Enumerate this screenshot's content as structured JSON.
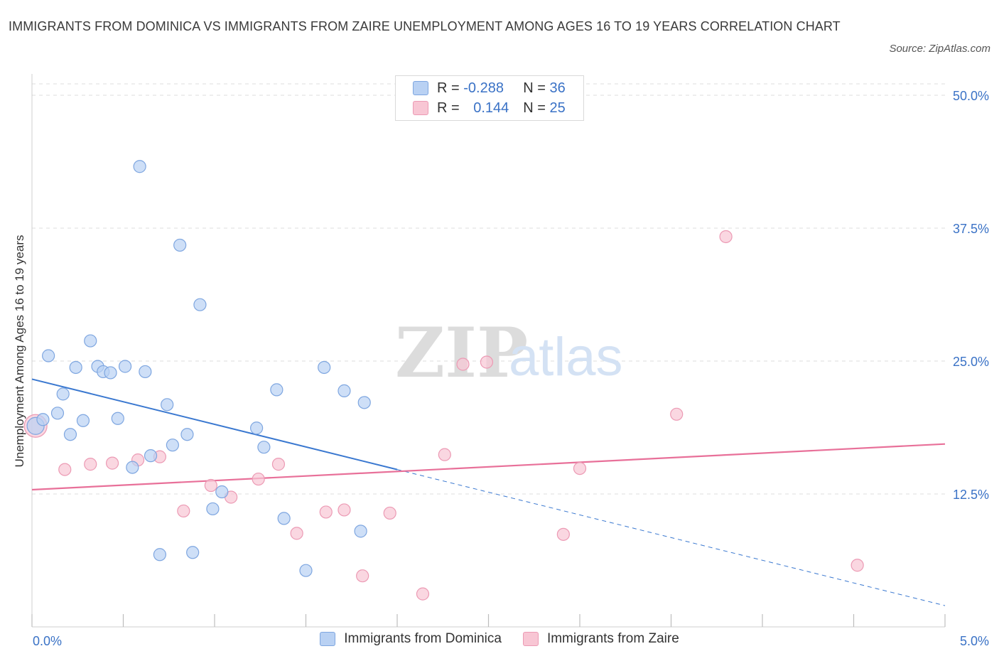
{
  "header": {
    "title": "IMMIGRANTS FROM DOMINICA VS IMMIGRANTS FROM ZAIRE UNEMPLOYMENT AMONG AGES 16 TO 19 YEARS CORRELATION CHART",
    "source": "Source: ZipAtlas.com"
  },
  "watermark": {
    "zip": "ZIP",
    "atlas": "atlas"
  },
  "legend": {
    "rows": [
      {
        "r_label": "R = ",
        "r_value": "-0.288",
        "n_label": "N = ",
        "n_value": "36"
      },
      {
        "r_label": "R = ",
        "r_value": "0.144",
        "n_label": "N = ",
        "n_value": "25"
      }
    ]
  },
  "colors": {
    "dominica_fill": "#b9d1f3",
    "dominica_stroke": "#7ea6e0",
    "dominica_line": "#3a78d0",
    "zaire_fill": "#f8c6d4",
    "zaire_stroke": "#ec9ab4",
    "zaire_line": "#e87099",
    "tick_label": "#3a72c6",
    "grid": "#dddddd"
  },
  "chart_data": {
    "type": "scatter",
    "title": "IMMIGRANTS FROM DOMINICA VS IMMIGRANTS FROM ZAIRE UNEMPLOYMENT AMONG AGES 16 TO 19 YEARS CORRELATION CHART",
    "xlabel": "",
    "ylabel": "Unemployment Among Ages 16 to 19 years",
    "xlim": [
      0,
      5
    ],
    "ylim": [
      0,
      50
    ],
    "x_tick_labels": [
      {
        "value": 0,
        "label": "0.0%"
      },
      {
        "value": 5,
        "label": "5.0%"
      }
    ],
    "y_tick_labels": [
      {
        "value": 12.5,
        "label": "12.5%"
      },
      {
        "value": 25,
        "label": "25.0%"
      },
      {
        "value": 37.5,
        "label": "37.5%"
      },
      {
        "value": 50,
        "label": "50.0%"
      }
    ],
    "grid": true,
    "legend_position": "top-center",
    "series": [
      {
        "name": "Immigrants from Dominica",
        "points": [
          [
            0.02,
            18.9
          ],
          [
            0.06,
            19.5
          ],
          [
            0.09,
            25.5
          ],
          [
            0.14,
            20.1
          ],
          [
            0.17,
            21.9
          ],
          [
            0.21,
            18.1
          ],
          [
            0.24,
            24.4
          ],
          [
            0.28,
            19.4
          ],
          [
            0.32,
            26.9
          ],
          [
            0.36,
            24.5
          ],
          [
            0.39,
            24.0
          ],
          [
            0.43,
            23.9
          ],
          [
            0.47,
            19.6
          ],
          [
            0.51,
            24.5
          ],
          [
            0.55,
            15.0
          ],
          [
            0.59,
            43.3
          ],
          [
            0.62,
            24.0
          ],
          [
            0.65,
            16.1
          ],
          [
            0.7,
            6.8
          ],
          [
            0.74,
            20.9
          ],
          [
            0.77,
            17.1
          ],
          [
            0.81,
            35.9
          ],
          [
            0.85,
            18.1
          ],
          [
            0.88,
            7.0
          ],
          [
            0.92,
            30.3
          ],
          [
            0.99,
            11.1
          ],
          [
            1.04,
            12.7
          ],
          [
            1.23,
            18.7
          ],
          [
            1.27,
            16.9
          ],
          [
            1.34,
            22.3
          ],
          [
            1.38,
            10.2
          ],
          [
            1.5,
            5.3
          ],
          [
            1.6,
            24.4
          ],
          [
            1.71,
            22.2
          ],
          [
            1.8,
            9.0
          ],
          [
            1.82,
            21.1
          ]
        ],
        "trend": {
          "x": [
            0,
            2.0
          ],
          "y": [
            23.3,
            14.8
          ]
        },
        "trend_extension": {
          "x": [
            2.0,
            5.0
          ],
          "y": [
            14.8,
            2.0
          ]
        }
      },
      {
        "name": "Immigrants from Zaire",
        "points": [
          [
            0.02,
            18.9
          ],
          [
            0.18,
            14.8
          ],
          [
            0.32,
            15.3
          ],
          [
            0.44,
            15.4
          ],
          [
            0.58,
            15.7
          ],
          [
            0.7,
            16.0
          ],
          [
            0.83,
            10.9
          ],
          [
            0.98,
            13.3
          ],
          [
            1.09,
            12.2
          ],
          [
            1.24,
            13.9
          ],
          [
            1.35,
            15.3
          ],
          [
            1.45,
            8.8
          ],
          [
            1.61,
            10.8
          ],
          [
            1.71,
            11.0
          ],
          [
            1.81,
            4.8
          ],
          [
            1.96,
            10.7
          ],
          [
            2.14,
            3.1
          ],
          [
            2.26,
            16.2
          ],
          [
            2.36,
            24.7
          ],
          [
            2.49,
            24.9
          ],
          [
            2.91,
            8.7
          ],
          [
            3.0,
            14.9
          ],
          [
            3.53,
            20.0
          ],
          [
            3.8,
            36.7
          ],
          [
            4.52,
            5.8
          ]
        ],
        "trend": {
          "x": [
            0,
            5.0
          ],
          "y": [
            12.9,
            17.2
          ]
        }
      }
    ]
  },
  "bottom_legend": [
    {
      "label": "Immigrants from Dominica"
    },
    {
      "label": "Immigrants from Zaire"
    }
  ]
}
